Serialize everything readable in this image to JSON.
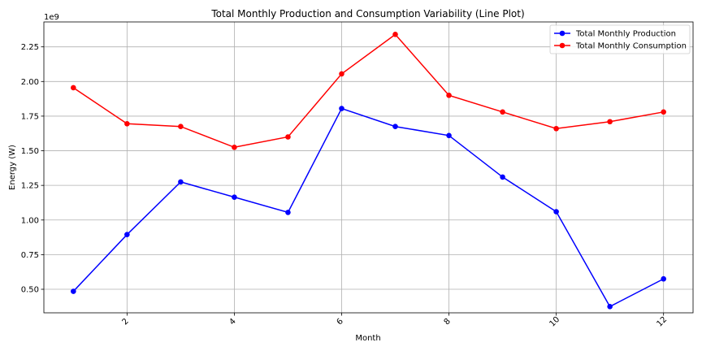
{
  "chart_data": {
    "type": "line",
    "title": "Total Monthly Production and Consumption Variability (Line Plot)",
    "xlabel": "Month",
    "ylabel": "Energy (W)",
    "y_offset_label": "1e9",
    "xlim": [
      0.45,
      12.55
    ],
    "ylim": [
      0.33,
      2.43
    ],
    "x_ticks": [
      2,
      4,
      6,
      8,
      10,
      12
    ],
    "y_ticks": [
      0.5,
      0.75,
      1.0,
      1.25,
      1.5,
      1.75,
      2.0,
      2.25
    ],
    "y_tick_labels": [
      "0.50",
      "0.75",
      "1.00",
      "1.25",
      "1.50",
      "1.75",
      "2.00",
      "2.25"
    ],
    "x": [
      1,
      2,
      3,
      4,
      5,
      6,
      7,
      8,
      9,
      10,
      11,
      12
    ],
    "grid": true,
    "legend_position": "top-right",
    "series": [
      {
        "name": "Total Monthly Production",
        "color": "#0000ff",
        "values": [
          0.485,
          0.895,
          1.275,
          1.165,
          1.055,
          1.805,
          1.675,
          1.61,
          1.31,
          1.06,
          0.375,
          0.575
        ]
      },
      {
        "name": "Total Monthly Consumption",
        "color": "#ff0000",
        "values": [
          1.955,
          1.695,
          1.675,
          1.525,
          1.6,
          2.055,
          2.34,
          1.9,
          1.78,
          1.66,
          1.71,
          1.78
        ]
      }
    ]
  }
}
